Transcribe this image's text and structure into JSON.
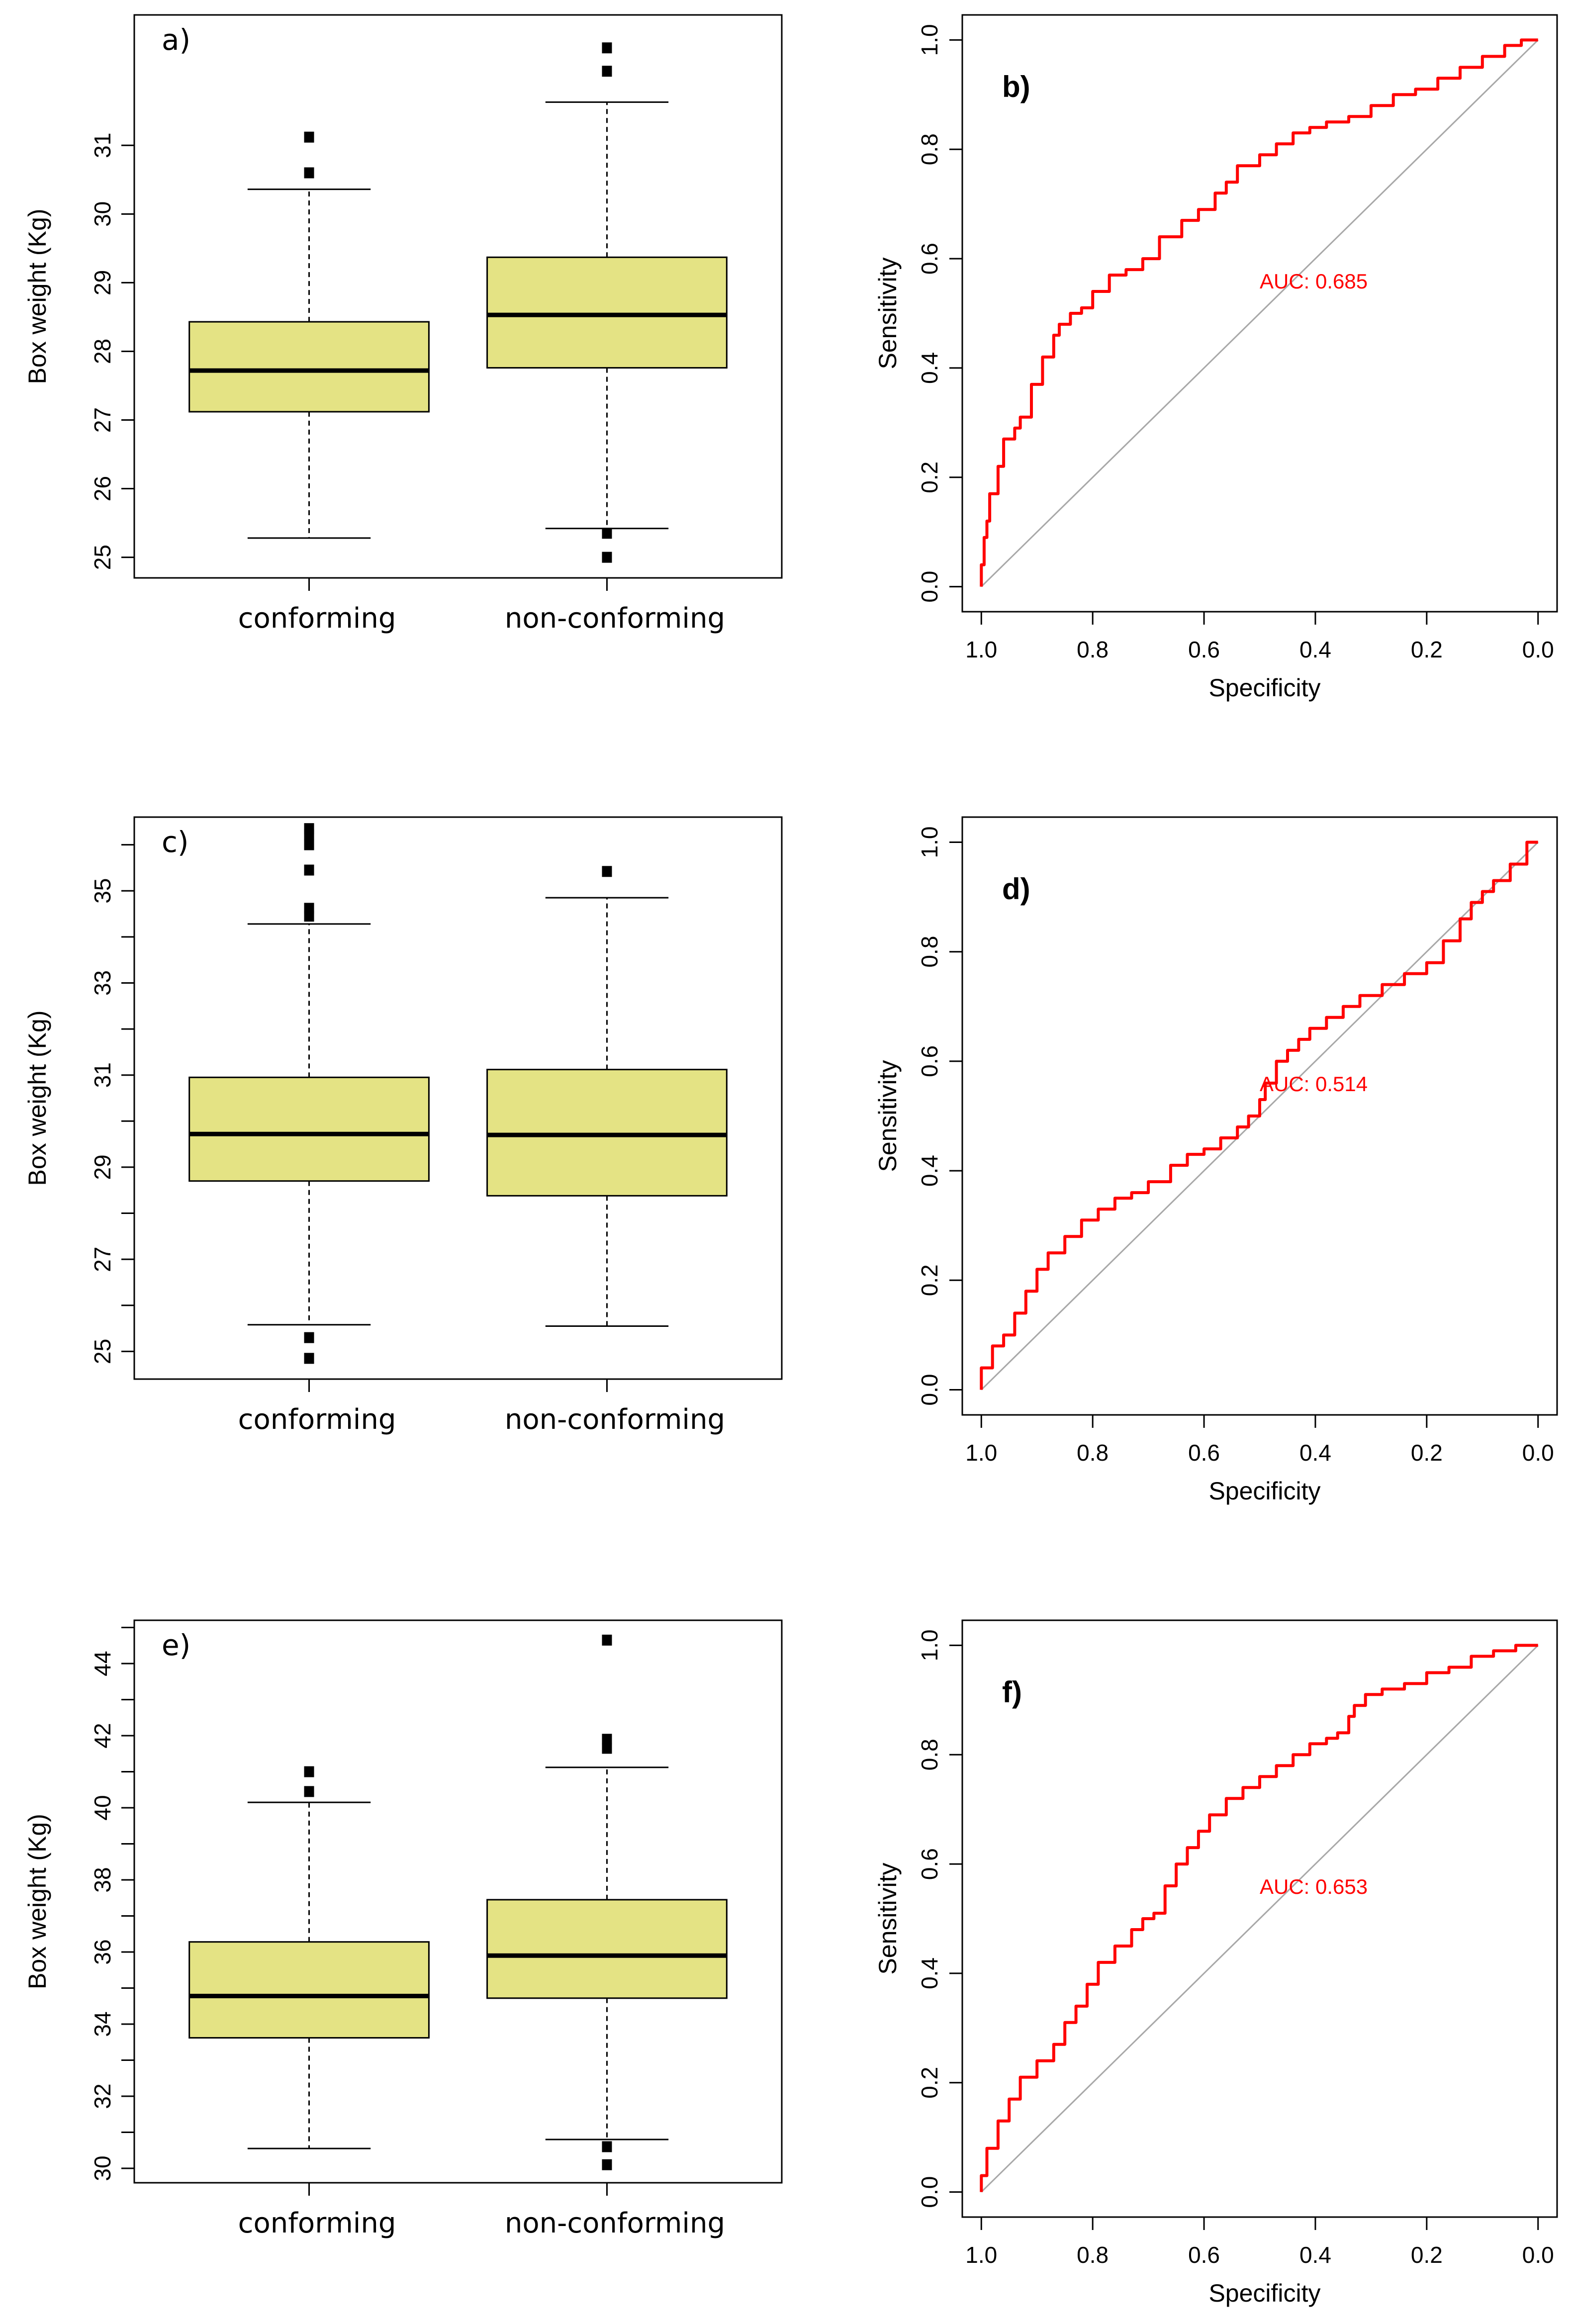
{
  "chart_data": [
    {
      "type": "box",
      "panel_label": "a)",
      "ylabel": "Box weight (Kg)",
      "ylim": [
        24.7,
        32.9
      ],
      "yticks": [
        25,
        26,
        27,
        28,
        29,
        30,
        31
      ],
      "categories": [
        "conforming",
        "non-conforming"
      ],
      "boxes": [
        {
          "q1": 27.12,
          "median": 27.72,
          "q3": 28.43,
          "whisker_low": 25.28,
          "whisker_high": 30.36,
          "outliers": [
            30.6,
            31.12
          ]
        },
        {
          "q1": 27.76,
          "median": 28.53,
          "q3": 29.37,
          "whisker_low": 25.42,
          "whisker_high": 31.63,
          "outliers": [
            25.0,
            25.35,
            32.08,
            32.42
          ]
        }
      ]
    },
    {
      "type": "line",
      "panel_label": "b)",
      "xlabel": "Specificity",
      "ylabel": "Sensitivity",
      "xlim": [
        1.0,
        0.0
      ],
      "ylim": [
        0.0,
        1.0
      ],
      "xticks": [
        1.0,
        0.8,
        0.6,
        0.4,
        0.2,
        0.0
      ],
      "yticks": [
        0.0,
        0.2,
        0.4,
        0.6,
        0.8,
        1.0
      ],
      "auc_label": "AUC: 0.685",
      "series": [
        {
          "name": "ROC",
          "x": [
            1.0,
            0.995,
            0.99,
            0.985,
            0.97,
            0.96,
            0.94,
            0.93,
            0.91,
            0.89,
            0.87,
            0.86,
            0.84,
            0.82,
            0.8,
            0.77,
            0.74,
            0.71,
            0.68,
            0.64,
            0.61,
            0.58,
            0.56,
            0.54,
            0.5,
            0.47,
            0.44,
            0.41,
            0.38,
            0.34,
            0.3,
            0.26,
            0.22,
            0.18,
            0.14,
            0.1,
            0.06,
            0.03,
            0.0
          ],
          "y": [
            0.0,
            0.04,
            0.09,
            0.12,
            0.17,
            0.22,
            0.27,
            0.29,
            0.31,
            0.37,
            0.42,
            0.46,
            0.48,
            0.5,
            0.51,
            0.54,
            0.57,
            0.58,
            0.6,
            0.64,
            0.67,
            0.69,
            0.72,
            0.74,
            0.77,
            0.79,
            0.81,
            0.83,
            0.84,
            0.85,
            0.86,
            0.88,
            0.9,
            0.91,
            0.93,
            0.95,
            0.97,
            0.99,
            1.0
          ]
        },
        {
          "name": "reference",
          "x": [
            1.0,
            0.0
          ],
          "y": [
            0.0,
            1.0
          ]
        }
      ]
    },
    {
      "type": "box",
      "panel_label": "c)",
      "ylabel": "Box weight (Kg)",
      "ylim": [
        24.4,
        36.6
      ],
      "yticks": [
        25,
        27,
        29,
        31,
        33,
        35
      ],
      "categories": [
        "conforming",
        "non-conforming"
      ],
      "boxes": [
        {
          "q1": 28.7,
          "median": 29.72,
          "q3": 30.95,
          "whisker_low": 25.58,
          "whisker_high": 34.28,
          "outliers": [
            24.85,
            25.3,
            34.45,
            34.62,
            35.45,
            36.0,
            36.22,
            36.35
          ]
        },
        {
          "q1": 28.38,
          "median": 29.7,
          "q3": 31.12,
          "whisker_low": 25.55,
          "whisker_high": 34.85,
          "outliers": [
            35.42
          ]
        }
      ]
    },
    {
      "type": "line",
      "panel_label": "d)",
      "xlabel": "Specificity",
      "ylabel": "Sensitivity",
      "xlim": [
        1.0,
        0.0
      ],
      "ylim": [
        0.0,
        1.0
      ],
      "xticks": [
        1.0,
        0.8,
        0.6,
        0.4,
        0.2,
        0.0
      ],
      "yticks": [
        0.0,
        0.2,
        0.4,
        0.6,
        0.8,
        1.0
      ],
      "auc_label": "AUC: 0.514",
      "series": [
        {
          "name": "ROC",
          "x": [
            1.0,
            0.98,
            0.96,
            0.94,
            0.92,
            0.9,
            0.88,
            0.85,
            0.82,
            0.79,
            0.76,
            0.73,
            0.7,
            0.66,
            0.63,
            0.6,
            0.57,
            0.54,
            0.52,
            0.5,
            0.49,
            0.47,
            0.45,
            0.43,
            0.41,
            0.38,
            0.35,
            0.32,
            0.28,
            0.24,
            0.2,
            0.17,
            0.14,
            0.12,
            0.1,
            0.08,
            0.05,
            0.02,
            0.0
          ],
          "y": [
            0.0,
            0.04,
            0.08,
            0.1,
            0.14,
            0.18,
            0.22,
            0.25,
            0.28,
            0.31,
            0.33,
            0.35,
            0.36,
            0.38,
            0.41,
            0.43,
            0.44,
            0.46,
            0.48,
            0.5,
            0.53,
            0.56,
            0.6,
            0.62,
            0.64,
            0.66,
            0.68,
            0.7,
            0.72,
            0.74,
            0.76,
            0.78,
            0.82,
            0.86,
            0.89,
            0.91,
            0.93,
            0.96,
            1.0
          ]
        },
        {
          "name": "reference",
          "x": [
            1.0,
            0.0
          ],
          "y": [
            0.0,
            1.0
          ]
        }
      ]
    },
    {
      "type": "box",
      "panel_label": "e)",
      "ylabel": "Box weight (Kg)",
      "ylim": [
        29.6,
        45.2
      ],
      "yticks": [
        30,
        32,
        34,
        36,
        38,
        40,
        42,
        44
      ],
      "categories": [
        "conforming",
        "non-conforming"
      ],
      "boxes": [
        {
          "q1": 33.62,
          "median": 34.78,
          "q3": 36.28,
          "whisker_low": 30.55,
          "whisker_high": 40.15,
          "outliers": [
            40.45,
            41.0
          ]
        },
        {
          "q1": 34.72,
          "median": 35.9,
          "q3": 37.45,
          "whisker_low": 30.8,
          "whisker_high": 41.12,
          "outliers": [
            30.1,
            30.6,
            41.65,
            41.9,
            44.65
          ]
        }
      ]
    },
    {
      "type": "line",
      "panel_label": "f)",
      "xlabel": "Specificity",
      "ylabel": "Sensitivity",
      "xlim": [
        1.0,
        0.0
      ],
      "ylim": [
        0.0,
        1.0
      ],
      "xticks": [
        1.0,
        0.8,
        0.6,
        0.4,
        0.2,
        0.0
      ],
      "yticks": [
        0.0,
        0.2,
        0.4,
        0.6,
        0.8,
        1.0
      ],
      "auc_label": "AUC: 0.653",
      "series": [
        {
          "name": "ROC",
          "x": [
            1.0,
            0.99,
            0.97,
            0.95,
            0.93,
            0.9,
            0.87,
            0.85,
            0.83,
            0.81,
            0.79,
            0.76,
            0.73,
            0.71,
            0.69,
            0.67,
            0.65,
            0.63,
            0.61,
            0.59,
            0.56,
            0.53,
            0.5,
            0.47,
            0.44,
            0.41,
            0.38,
            0.36,
            0.34,
            0.33,
            0.31,
            0.28,
            0.24,
            0.2,
            0.16,
            0.12,
            0.08,
            0.04,
            0.0
          ],
          "y": [
            0.0,
            0.03,
            0.08,
            0.13,
            0.17,
            0.21,
            0.24,
            0.27,
            0.31,
            0.34,
            0.38,
            0.42,
            0.45,
            0.48,
            0.5,
            0.51,
            0.56,
            0.6,
            0.63,
            0.66,
            0.69,
            0.72,
            0.74,
            0.76,
            0.78,
            0.8,
            0.82,
            0.83,
            0.84,
            0.87,
            0.89,
            0.91,
            0.92,
            0.93,
            0.95,
            0.96,
            0.98,
            0.99,
            1.0
          ]
        },
        {
          "name": "reference",
          "x": [
            1.0,
            0.0
          ],
          "y": [
            0.0,
            1.0
          ]
        }
      ]
    }
  ]
}
